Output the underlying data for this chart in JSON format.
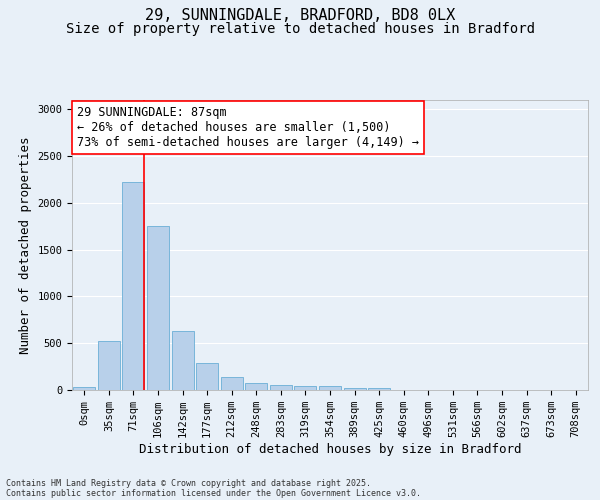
{
  "title1": "29, SUNNINGDALE, BRADFORD, BD8 0LX",
  "title2": "Size of property relative to detached houses in Bradford",
  "xlabel": "Distribution of detached houses by size in Bradford",
  "ylabel": "Number of detached properties",
  "footnote1": "Contains HM Land Registry data © Crown copyright and database right 2025.",
  "footnote2": "Contains public sector information licensed under the Open Government Licence v3.0.",
  "categories": [
    "0sqm",
    "35sqm",
    "71sqm",
    "106sqm",
    "142sqm",
    "177sqm",
    "212sqm",
    "248sqm",
    "283sqm",
    "319sqm",
    "354sqm",
    "389sqm",
    "425sqm",
    "460sqm",
    "496sqm",
    "531sqm",
    "566sqm",
    "602sqm",
    "637sqm",
    "673sqm",
    "708sqm"
  ],
  "values": [
    30,
    520,
    2220,
    1750,
    635,
    285,
    140,
    75,
    50,
    40,
    40,
    25,
    20,
    5,
    5,
    5,
    5,
    0,
    0,
    0,
    0
  ],
  "bar_color": "#b8d0ea",
  "bar_edge_color": "#6aaed6",
  "vline_x_index": 2,
  "vline_color": "red",
  "annotation_text": "29 SUNNINGDALE: 87sqm\n← 26% of detached houses are smaller (1,500)\n73% of semi-detached houses are larger (4,149) →",
  "annotation_box_color": "white",
  "annotation_box_edgecolor": "red",
  "ylim": [
    0,
    3100
  ],
  "yticks": [
    0,
    500,
    1000,
    1500,
    2000,
    2500,
    3000
  ],
  "background_color": "#e8f0f8",
  "grid_color": "white",
  "title_fontsize": 11,
  "subtitle_fontsize": 10,
  "axis_label_fontsize": 9,
  "tick_fontsize": 7.5,
  "annot_fontsize": 8.5,
  "footnote_fontsize": 6
}
